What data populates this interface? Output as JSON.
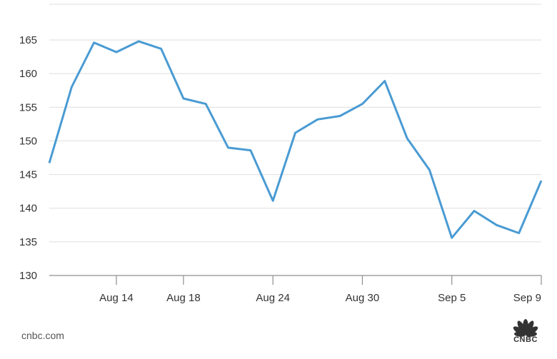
{
  "footer": {
    "source": "cnbc.com",
    "logo_text": "CNBC"
  },
  "colors": {
    "line": "#4a9bd3",
    "grid": "#dedede",
    "axis": "#8f8f8f",
    "logo": "#333333"
  },
  "icons": {
    "logo": "cnbc-peacock-icon"
  },
  "chart_data": {
    "type": "line",
    "title": "",
    "xlabel": "",
    "ylabel": "",
    "ylim": [
      130,
      168
    ],
    "yticks": [
      130,
      135,
      140,
      145,
      150,
      155,
      160,
      165
    ],
    "grid": true,
    "xtick_labels": [
      "Aug 14",
      "Aug 18",
      "Aug 24",
      "Aug 30",
      "Sep 5",
      "Sep 9"
    ],
    "xtick_index": [
      3,
      6,
      10,
      14,
      18,
      22
    ],
    "series": [
      {
        "values": [
          146.7,
          158.0,
          164.6,
          163.2,
          164.8,
          163.7,
          156.3,
          155.5,
          149.0,
          148.6,
          141.1,
          151.2,
          153.2,
          153.7,
          155.5,
          158.9,
          150.4,
          145.7,
          135.6,
          139.6,
          137.5,
          136.3,
          144.1
        ]
      }
    ]
  }
}
